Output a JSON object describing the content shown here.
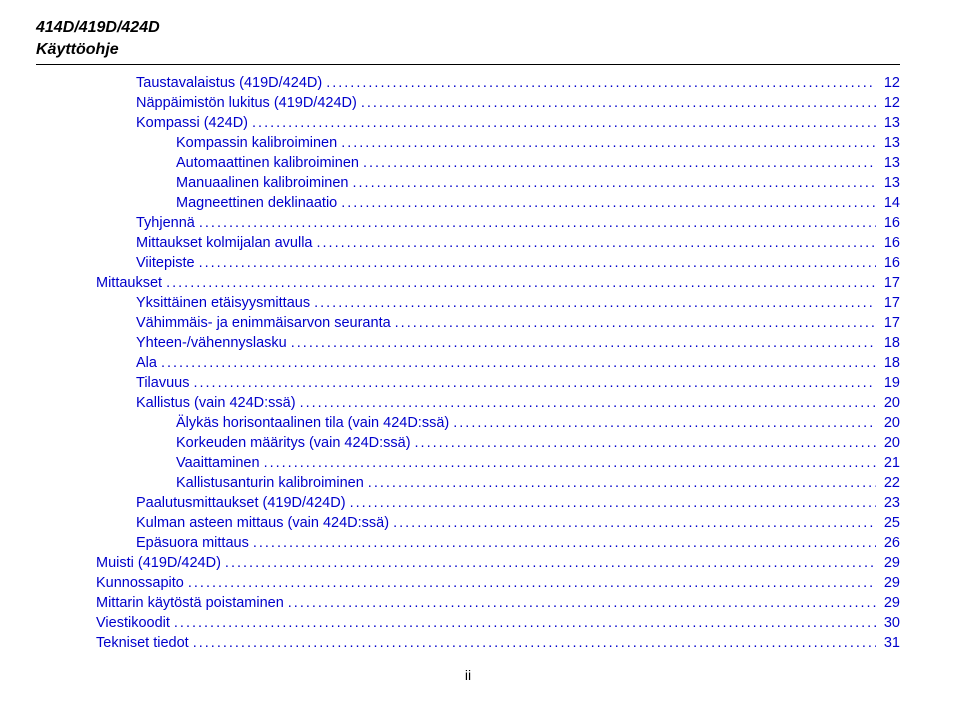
{
  "header": {
    "line1": "414D/419D/424D",
    "line2": "Käyttöohje"
  },
  "toc": {
    "text_color": "#0000cc",
    "font_size": 14.5,
    "entries": [
      {
        "title": "Taustavalaistus (419D/424D)",
        "page": "12",
        "indent": 1
      },
      {
        "title": "Näppäimistön lukitus (419D/424D)",
        "page": "12",
        "indent": 1
      },
      {
        "title": "Kompassi (424D)",
        "page": "13",
        "indent": 1
      },
      {
        "title": "Kompassin kalibroiminen",
        "page": "13",
        "indent": 2
      },
      {
        "title": "Automaattinen kalibroiminen",
        "page": "13",
        "indent": 2
      },
      {
        "title": "Manuaalinen kalibroiminen",
        "page": "13",
        "indent": 2
      },
      {
        "title": "Magneettinen deklinaatio",
        "page": "14",
        "indent": 2
      },
      {
        "title": "Tyhjennä",
        "page": "16",
        "indent": 1
      },
      {
        "title": "Mittaukset kolmijalan avulla",
        "page": "16",
        "indent": 1
      },
      {
        "title": "Viitepiste",
        "page": "16",
        "indent": 1
      },
      {
        "title": "Mittaukset",
        "page": "17",
        "indent": 0
      },
      {
        "title": "Yksittäinen etäisyysmittaus",
        "page": "17",
        "indent": 1
      },
      {
        "title": "Vähimmäis- ja enimmäisarvon seuranta",
        "page": "17",
        "indent": 1
      },
      {
        "title": "Yhteen-/vähennyslasku",
        "page": "18",
        "indent": 1
      },
      {
        "title": "Ala",
        "page": "18",
        "indent": 1
      },
      {
        "title": "Tilavuus",
        "page": "19",
        "indent": 1
      },
      {
        "title": "Kallistus (vain 424D:ssä)",
        "page": "20",
        "indent": 1
      },
      {
        "title": "Älykäs horisontaalinen tila (vain 424D:ssä)",
        "page": "20",
        "indent": 2
      },
      {
        "title": "Korkeuden määritys (vain 424D:ssä)",
        "page": "20",
        "indent": 2
      },
      {
        "title": "Vaaittaminen",
        "page": "21",
        "indent": 2
      },
      {
        "title": "Kallistusanturin kalibroiminen",
        "page": "22",
        "indent": 2
      },
      {
        "title": "Paalutusmittaukset (419D/424D)",
        "page": "23",
        "indent": 1
      },
      {
        "title": "Kulman asteen mittaus (vain 424D:ssä)",
        "page": "25",
        "indent": 1
      },
      {
        "title": "Epäsuora mittaus",
        "page": "26",
        "indent": 1
      },
      {
        "title": "Muisti (419D/424D)",
        "page": "29",
        "indent": 0
      },
      {
        "title": "Kunnossapito",
        "page": "29",
        "indent": 0
      },
      {
        "title": "Mittarin käytöstä poistaminen",
        "page": "29",
        "indent": 0
      },
      {
        "title": "Viestikoodit",
        "page": "30",
        "indent": 0
      },
      {
        "title": "Tekniset tiedot",
        "page": "31",
        "indent": 0
      }
    ]
  },
  "footer": {
    "pagenum": "ii"
  }
}
